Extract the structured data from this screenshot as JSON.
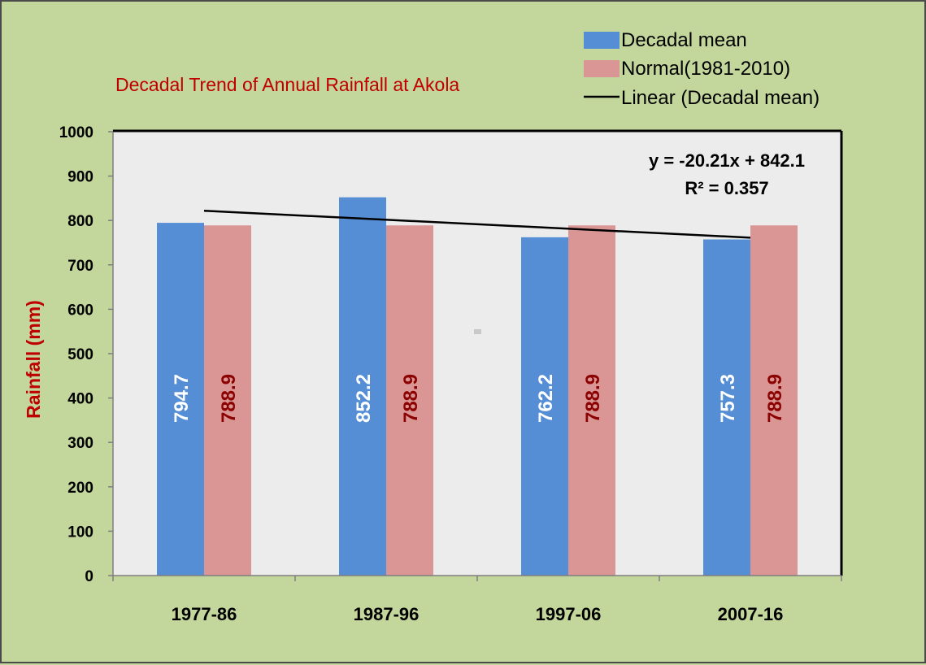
{
  "chart_data": {
    "type": "bar",
    "title": "Decadal Trend of Annual Rainfall at Akola",
    "xlabel": "",
    "ylabel": "Rainfall (mm)",
    "categories": [
      "1977-86",
      "1987-96",
      "1997-06",
      "2007-16"
    ],
    "ylim": [
      0,
      1000
    ],
    "yticks": [
      "0",
      "100",
      "200",
      "300",
      "400",
      "500",
      "600",
      "700",
      "800",
      "900",
      "1000"
    ],
    "ytick_values": [
      0,
      100,
      200,
      300,
      400,
      500,
      600,
      700,
      800,
      900,
      1000
    ],
    "series": [
      {
        "name": "Decadal mean",
        "values": [
          794.7,
          852.2,
          762.2,
          757.3
        ],
        "labels": [
          "794.7",
          "852.2",
          "762.2",
          "757.3"
        ],
        "color": "#558ed5",
        "label_color": "#ffffff"
      },
      {
        "name": "Normal(1981-2010)",
        "values": [
          788.9,
          788.9,
          788.9,
          788.9
        ],
        "labels": [
          "788.9",
          "788.9",
          "788.9",
          "788.9"
        ],
        "color": "#d99694",
        "label_color": "#8b0000"
      }
    ],
    "trendline": {
      "name": "Linear (Decadal mean)",
      "slope": -20.21,
      "intercept": 842.1,
      "equation": "y = -20.21x + 842.1",
      "r2": "R² = 0.357",
      "color": "#000000"
    },
    "grid": false,
    "legend_position": "top-right",
    "plot_background": "#ececec",
    "page_background": "#c3d69b"
  }
}
